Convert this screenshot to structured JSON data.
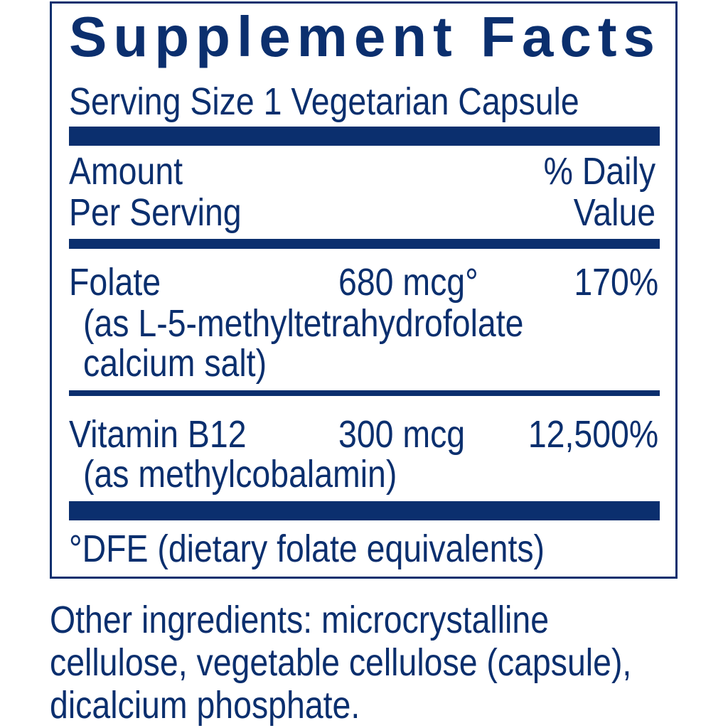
{
  "title": "Supplement Facts",
  "serving_size": "Serving Size 1 Vegetarian Capsule",
  "header": {
    "amount_line1": "Amount",
    "amount_line2": "Per Serving",
    "dv_line1": "% Daily",
    "dv_line2": "Value"
  },
  "nutrients": [
    {
      "name": "Folate",
      "source_line1": "(as L-5-methyltetrahydrofolate",
      "source_line2": "calcium salt)",
      "amount": "680 mcg°",
      "dv": "170%"
    },
    {
      "name": "Vitamin B12",
      "source_line1": "(as methylcobalamin)",
      "amount": "300 mcg",
      "dv": "12,500%"
    }
  ],
  "footnote": "°DFE (dietary folate equivalents)",
  "other_ingredients": {
    "line1": "Other ingredients: microcrystalline",
    "line2": "cellulose, vegetable cellulose (capsule),",
    "line3": "dicalcium phosphate."
  },
  "colors": {
    "ink": "#0b2f6e",
    "background": "#ffffff"
  }
}
